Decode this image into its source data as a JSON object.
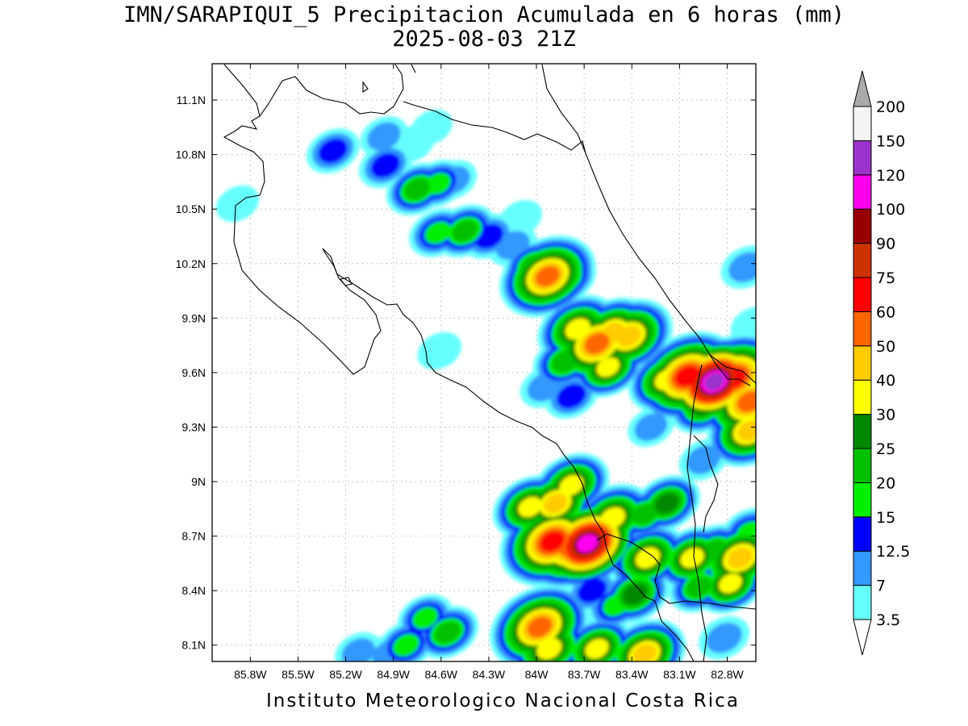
{
  "title": {
    "line1": "IMN/SARAPIQUI_5 Precipitacion Acumulada en 6 horas (mm)",
    "line2": "2025-08-03 21Z"
  },
  "footer": "Instituto Meteorologico Nacional Costa Rica",
  "map": {
    "lon_range": [
      -86.04,
      -82.62
    ],
    "lat_range": [
      8.01,
      11.3
    ],
    "lat_ticks": [
      {
        "value": 11.1,
        "label": "11.1N"
      },
      {
        "value": 10.8,
        "label": "10.8N"
      },
      {
        "value": 10.5,
        "label": "10.5N"
      },
      {
        "value": 10.2,
        "label": "10.2N"
      },
      {
        "value": 9.9,
        "label": "9.9N"
      },
      {
        "value": 9.6,
        "label": "9.6N"
      },
      {
        "value": 9.3,
        "label": "9.3N"
      },
      {
        "value": 9.0,
        "label": "9N"
      },
      {
        "value": 8.7,
        "label": "8.7N"
      },
      {
        "value": 8.4,
        "label": "8.4N"
      },
      {
        "value": 8.1,
        "label": "8.1N"
      }
    ],
    "lon_ticks": [
      {
        "value": -85.8,
        "label": "85.8W"
      },
      {
        "value": -85.5,
        "label": "85.5W"
      },
      {
        "value": -85.2,
        "label": "85.2W"
      },
      {
        "value": -84.9,
        "label": "84.9W"
      },
      {
        "value": -84.6,
        "label": "84.6W"
      },
      {
        "value": -84.3,
        "label": "84.3W"
      },
      {
        "value": -84.0,
        "label": "84W"
      },
      {
        "value": -83.7,
        "label": "83.7W"
      },
      {
        "value": -83.4,
        "label": "83.4W"
      },
      {
        "value": -83.1,
        "label": "83.1W"
      },
      {
        "value": -82.8,
        "label": "82.8W"
      }
    ]
  },
  "colorbar": {
    "levels": [
      "3.5",
      "7",
      "12.5",
      "15",
      "20",
      "25",
      "30",
      "40",
      "50",
      "60",
      "75",
      "90",
      "100",
      "120",
      "150",
      "200"
    ],
    "colors": {
      "under": "#ffffff",
      "bins": [
        "#66ffff",
        "#3399ff",
        "#0000ff",
        "#00ee00",
        "#00c000",
        "#008800",
        "#ffff00",
        "#ffcc00",
        "#ff6600",
        "#ff0000",
        "#cc3300",
        "#990000",
        "#ff00ee",
        "#9933cc",
        "#f4f4f4"
      ],
      "over": "#aaaaaa"
    }
  },
  "precip_cells": [
    {
      "lon": -85.28,
      "lat": 10.82,
      "v": 14
    },
    {
      "lon": -84.96,
      "lat": 10.9,
      "v": 9
    },
    {
      "lon": -84.78,
      "lat": 10.86,
      "v": 6
    },
    {
      "lon": -84.66,
      "lat": 10.95,
      "v": 4
    },
    {
      "lon": -84.95,
      "lat": 10.74,
      "v": 14
    },
    {
      "lon": -84.75,
      "lat": 10.61,
      "v": 22
    },
    {
      "lon": -84.62,
      "lat": 10.64,
      "v": 17
    },
    {
      "lon": -84.52,
      "lat": 10.66,
      "v": 8
    },
    {
      "lon": -84.62,
      "lat": 10.37,
      "v": 18
    },
    {
      "lon": -84.45,
      "lat": 10.38,
      "v": 22
    },
    {
      "lon": -84.3,
      "lat": 10.35,
      "v": 14
    },
    {
      "lon": -84.15,
      "lat": 10.3,
      "v": 10
    },
    {
      "lon": -84.1,
      "lat": 10.45,
      "v": 5
    },
    {
      "lon": -84.02,
      "lat": 10.19,
      "v": 20
    },
    {
      "lon": -83.93,
      "lat": 10.13,
      "v": 52
    },
    {
      "lon": -83.82,
      "lat": 10.12,
      "v": 22
    },
    {
      "lon": -85.88,
      "lat": 10.53,
      "v": 5
    },
    {
      "lon": -84.61,
      "lat": 9.72,
      "v": 6
    },
    {
      "lon": -83.74,
      "lat": 9.84,
      "v": 38
    },
    {
      "lon": -83.62,
      "lat": 9.76,
      "v": 55
    },
    {
      "lon": -83.52,
      "lat": 9.82,
      "v": 40
    },
    {
      "lon": -83.42,
      "lat": 9.8,
      "v": 45
    },
    {
      "lon": -83.55,
      "lat": 9.63,
      "v": 30
    },
    {
      "lon": -83.82,
      "lat": 9.66,
      "v": 24
    },
    {
      "lon": -83.18,
      "lat": 9.56,
      "v": 35
    },
    {
      "lon": -83.05,
      "lat": 9.58,
      "v": 66
    },
    {
      "lon": -82.88,
      "lat": 9.55,
      "v": 145
    },
    {
      "lon": -82.76,
      "lat": 9.57,
      "v": 70
    },
    {
      "lon": -82.95,
      "lat": 9.42,
      "v": 26
    },
    {
      "lon": -82.66,
      "lat": 9.44,
      "v": 55
    },
    {
      "lon": -82.66,
      "lat": 9.28,
      "v": 42
    },
    {
      "lon": -82.68,
      "lat": 10.18,
      "v": 12
    },
    {
      "lon": -82.64,
      "lat": 9.86,
      "v": 6
    },
    {
      "lon": -83.95,
      "lat": 9.52,
      "v": 10
    },
    {
      "lon": -83.78,
      "lat": 9.47,
      "v": 14
    },
    {
      "lon": -83.28,
      "lat": 9.3,
      "v": 8
    },
    {
      "lon": -82.95,
      "lat": 9.12,
      "v": 10
    },
    {
      "lon": -84.04,
      "lat": 8.86,
      "v": 33
    },
    {
      "lon": -83.88,
      "lat": 8.88,
      "v": 40
    },
    {
      "lon": -83.78,
      "lat": 8.98,
      "v": 34
    },
    {
      "lon": -83.9,
      "lat": 8.67,
      "v": 62
    },
    {
      "lon": -83.78,
      "lat": 8.64,
      "v": 55
    },
    {
      "lon": -83.68,
      "lat": 8.66,
      "v": 110
    },
    {
      "lon": -83.52,
      "lat": 8.8,
      "v": 38
    },
    {
      "lon": -83.32,
      "lat": 8.82,
      "v": 20
    },
    {
      "lon": -83.18,
      "lat": 8.88,
      "v": 26
    },
    {
      "lon": -83.3,
      "lat": 8.58,
      "v": 36
    },
    {
      "lon": -83.02,
      "lat": 8.58,
      "v": 32
    },
    {
      "lon": -82.88,
      "lat": 8.62,
      "v": 22
    },
    {
      "lon": -82.72,
      "lat": 8.58,
      "v": 45
    },
    {
      "lon": -82.66,
      "lat": 8.72,
      "v": 18
    },
    {
      "lon": -83.38,
      "lat": 8.38,
      "v": 28
    },
    {
      "lon": -83.5,
      "lat": 8.32,
      "v": 18
    },
    {
      "lon": -83.65,
      "lat": 8.4,
      "v": 14
    },
    {
      "lon": -83.98,
      "lat": 8.2,
      "v": 55
    },
    {
      "lon": -83.92,
      "lat": 8.08,
      "v": 38
    },
    {
      "lon": -83.62,
      "lat": 8.08,
      "v": 32
    },
    {
      "lon": -83.32,
      "lat": 8.05,
      "v": 40
    },
    {
      "lon": -82.98,
      "lat": 8.42,
      "v": 20
    },
    {
      "lon": -82.78,
      "lat": 8.44,
      "v": 30
    },
    {
      "lon": -82.82,
      "lat": 8.14,
      "v": 12
    },
    {
      "lon": -84.56,
      "lat": 8.17,
      "v": 22
    },
    {
      "lon": -84.7,
      "lat": 8.25,
      "v": 16
    },
    {
      "lon": -84.82,
      "lat": 8.1,
      "v": 18
    },
    {
      "lon": -84.92,
      "lat": 8.05,
      "v": 12
    },
    {
      "lon": -85.12,
      "lat": 8.06,
      "v": 9
    }
  ]
}
